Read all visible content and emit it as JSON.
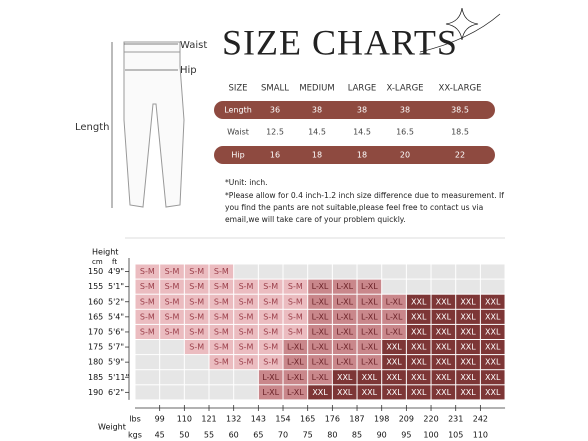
{
  "header": {
    "title": "SIZE CHARTS"
  },
  "figure": {
    "labels": {
      "waist": "Waist",
      "hip": "Hip",
      "length": "Length"
    }
  },
  "table": {
    "columns": [
      "SIZE",
      "SMALL",
      "MEDIUM",
      "LARGE",
      "X-LARGE",
      "XX-LARGE"
    ],
    "rows": [
      [
        "Length",
        "36",
        "38",
        "38",
        "38",
        "38.5"
      ],
      [
        "Waist",
        "12.5",
        "14.5",
        "14.5",
        "16.5",
        "18.5"
      ],
      [
        "Hip",
        "16",
        "18",
        "18",
        "20",
        "22"
      ]
    ],
    "highlight_color": "#8e4a40"
  },
  "notes": [
    "*Unit: inch.",
    "*Please allow for 0.4 inch-1.2 inch size difference due to measurement.  If",
    "you find the pants are not suitable,please feel free to contact us via",
    "email,we will take care of your problem quickly."
  ],
  "grid": {
    "height_label": "Height",
    "cm_label": "cm",
    "ft_label": "ft",
    "weight_label": "Weight",
    "lbs_label": "lbs",
    "kgs_label": "kgs",
    "heights": [
      [
        "150",
        "4'9\""
      ],
      [
        "155",
        "5'1\""
      ],
      [
        "160",
        "5'2\""
      ],
      [
        "165",
        "5'4\""
      ],
      [
        "170",
        "5'6\""
      ],
      [
        "175",
        "5'7\""
      ],
      [
        "180",
        "5'9\""
      ],
      [
        "185",
        "5'11\""
      ],
      [
        "190",
        "6'2\""
      ]
    ],
    "lbs": [
      "99",
      "110",
      "121",
      "132",
      "143",
      "154",
      "165",
      "176",
      "187",
      "198",
      "209",
      "220",
      "231",
      "242"
    ],
    "kgs": [
      "45",
      "50",
      "55",
      "60",
      "65",
      "70",
      "75",
      "80",
      "85",
      "90",
      "95",
      "100",
      "105",
      "110"
    ],
    "colors": [
      [
        "#ebbcc0",
        "#9b3f4a"
      ],
      [
        "#c9878b",
        "#6b2228"
      ],
      [
        "#7d3636",
        "#ffffff"
      ]
    ],
    "cells": [
      [
        "S-M",
        "S-M",
        "S-M",
        "S-M",
        null,
        null,
        null,
        null,
        null,
        null,
        null,
        null,
        null,
        null,
        null
      ],
      [
        "S-M",
        "S-M",
        "S-M",
        "S-M",
        "S-M",
        "S-M",
        "S-M",
        "L-XL",
        "L-XL",
        "L-XL",
        null,
        null,
        null,
        null,
        null
      ],
      [
        "S-M",
        "S-M",
        "S-M",
        "S-M",
        "S-M",
        "S-M",
        "S-M",
        "L-XL",
        "L-XL",
        "L-XL",
        "L-XL",
        "XXL",
        "XXL",
        "XXL",
        "XXL"
      ],
      [
        "S-M",
        "S-M",
        "S-M",
        "S-M",
        "S-M",
        "S-M",
        "S-M",
        "L-XL",
        "L-XL",
        "L-XL",
        "L-XL",
        "XXL",
        "XXL",
        "XXL",
        "XXL"
      ],
      [
        "S-M",
        "S-M",
        "S-M",
        "S-M",
        "S-M",
        "S-M",
        "S-M",
        "L-XL",
        "L-XL",
        "L-XL",
        "L-XL",
        "XXL",
        "XXL",
        "XXL",
        "XXL"
      ],
      [
        null,
        null,
        "S-M",
        "S-M",
        "S-M",
        "S-M",
        "L-XL",
        "L-XL",
        "L-XL",
        "L-XL",
        "XXL",
        "XXL",
        "XXL",
        "XXL",
        "XXL"
      ],
      [
        null,
        null,
        null,
        "S-M",
        "S-M",
        "S-M",
        "L-XL",
        "L-XL",
        "L-XL",
        "L-XL",
        "XXL",
        "XXL",
        "XXL",
        "XXL",
        "XXL"
      ],
      [
        null,
        null,
        null,
        null,
        null,
        "L-XL",
        "L-XL",
        "L-XL",
        "XXL",
        "XXL",
        "XXL",
        "XXL",
        "XXL",
        "XXL",
        "XXL"
      ],
      [
        null,
        null,
        null,
        null,
        null,
        "L-XL",
        "L-XL",
        "XXL",
        "XXL",
        "XXL",
        "XXL",
        "XXL",
        "XXL",
        "XXL",
        "XXL"
      ]
    ]
  }
}
